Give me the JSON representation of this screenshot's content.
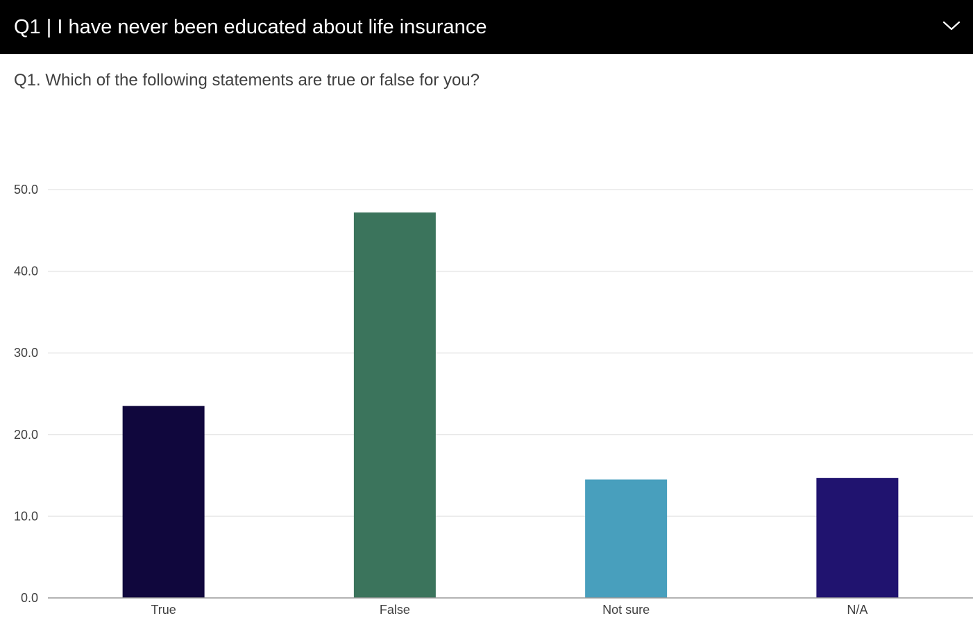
{
  "header": {
    "title": "Q1 | I have never been educated about life insurance",
    "toggle_icon": "chevron-down-icon"
  },
  "question": "Q1. Which of the following statements are true or false for you?",
  "chart_data": {
    "type": "bar",
    "categories": [
      "True",
      "False",
      "Not sure",
      "N/A"
    ],
    "values": [
      23.5,
      47.2,
      14.5,
      14.7
    ],
    "colors": [
      "#10073d",
      "#3b745c",
      "#489fbd",
      "#20136f"
    ],
    "ylim": [
      0,
      50
    ],
    "yticks": [
      0,
      10,
      20,
      30,
      40,
      50
    ],
    "ytick_labels": [
      "0.0",
      "10.0",
      "20.0",
      "30.0",
      "40.0",
      "50.0"
    ],
    "grid": true,
    "title": "",
    "xlabel": "",
    "ylabel": ""
  }
}
